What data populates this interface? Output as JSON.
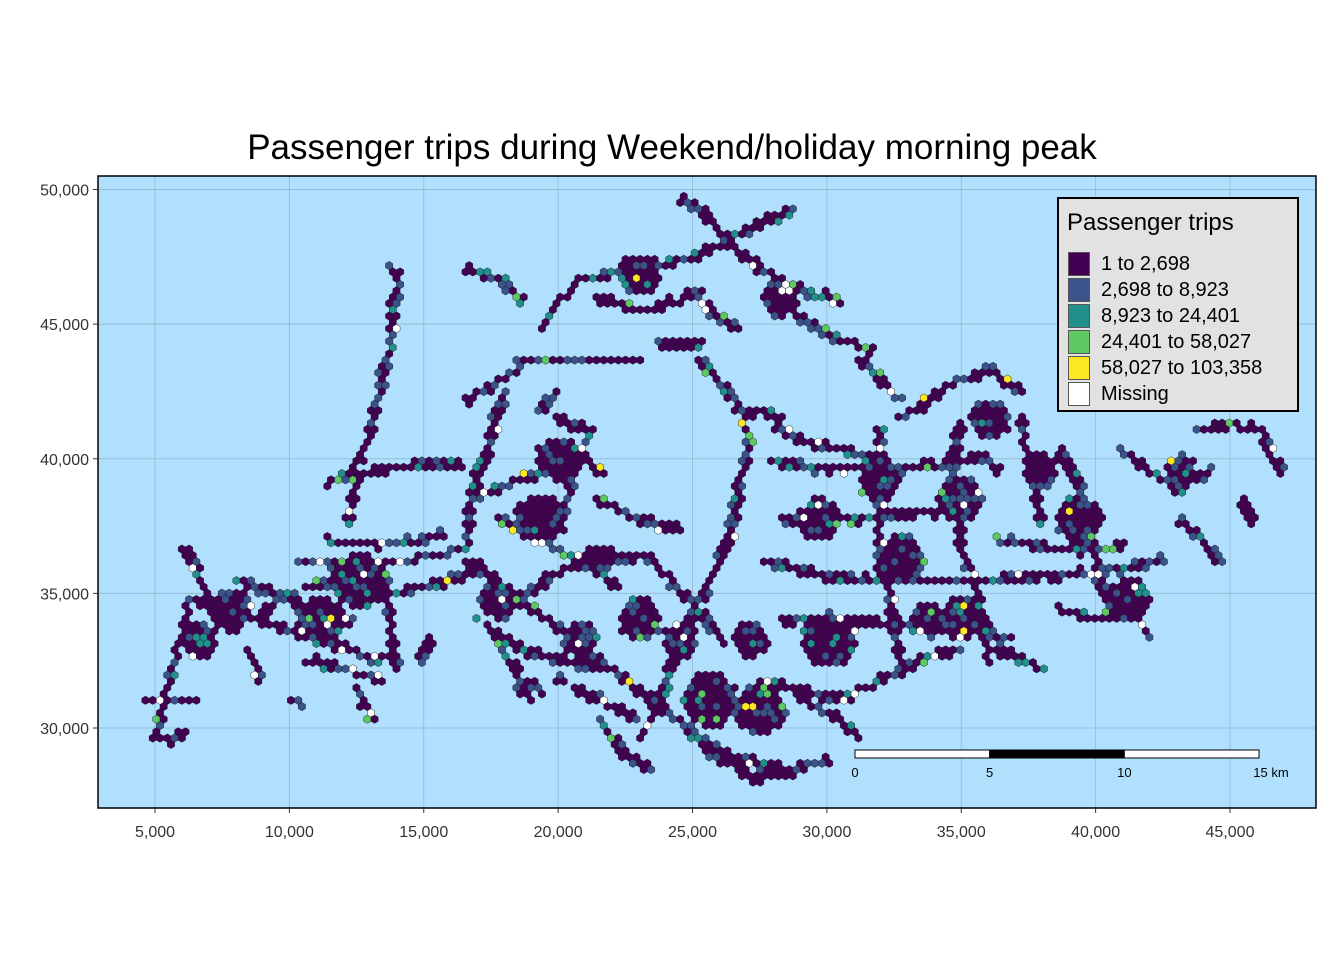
{
  "title": "Passenger trips during Weekend/holiday morning peak",
  "colors": {
    "water": "#b0e0fe",
    "frame": "#000000",
    "class_1": "#440154",
    "class_2": "#3b528b",
    "class_3": "#21908c",
    "class_4": "#5ec962",
    "class_5": "#fde725",
    "missing": "#ffffff"
  },
  "x_axis": {
    "range": [
      3000,
      48000
    ],
    "ticks": [
      {
        "value": 5000,
        "label": "5,000"
      },
      {
        "value": 10000,
        "label": "10,000"
      },
      {
        "value": 15000,
        "label": "15,000"
      },
      {
        "value": 20000,
        "label": "20,000"
      },
      {
        "value": 25000,
        "label": "25,000"
      },
      {
        "value": 30000,
        "label": "30,000"
      },
      {
        "value": 35000,
        "label": "35,000"
      },
      {
        "value": 40000,
        "label": "40,000"
      },
      {
        "value": 45000,
        "label": "45,000"
      }
    ]
  },
  "y_axis": {
    "range": [
      27000,
      50500
    ],
    "ticks": [
      {
        "value": 30000,
        "label": "30,000"
      },
      {
        "value": 35000,
        "label": "35,000"
      },
      {
        "value": 40000,
        "label": "40,000"
      },
      {
        "value": 45000,
        "label": "45,000"
      },
      {
        "value": 50000,
        "label": "50,000"
      }
    ]
  },
  "legend": {
    "title": "Passenger trips",
    "items": [
      {
        "label": "1 to 2,698",
        "color": "#440154"
      },
      {
        "label": "2,698 to 8,923",
        "color": "#3b528b"
      },
      {
        "label": "8,923 to 24,401",
        "color": "#21908c"
      },
      {
        "label": "24,401 to 58,027",
        "color": "#5ec962"
      },
      {
        "label": "58,027 to 103,358",
        "color": "#fde725"
      },
      {
        "label": "Missing",
        "color": "#ffffff"
      }
    ]
  },
  "scale_bar": {
    "labels": [
      "0",
      "5",
      "10",
      "15 km"
    ],
    "km_values": [
      0,
      5,
      10,
      15
    ]
  }
}
